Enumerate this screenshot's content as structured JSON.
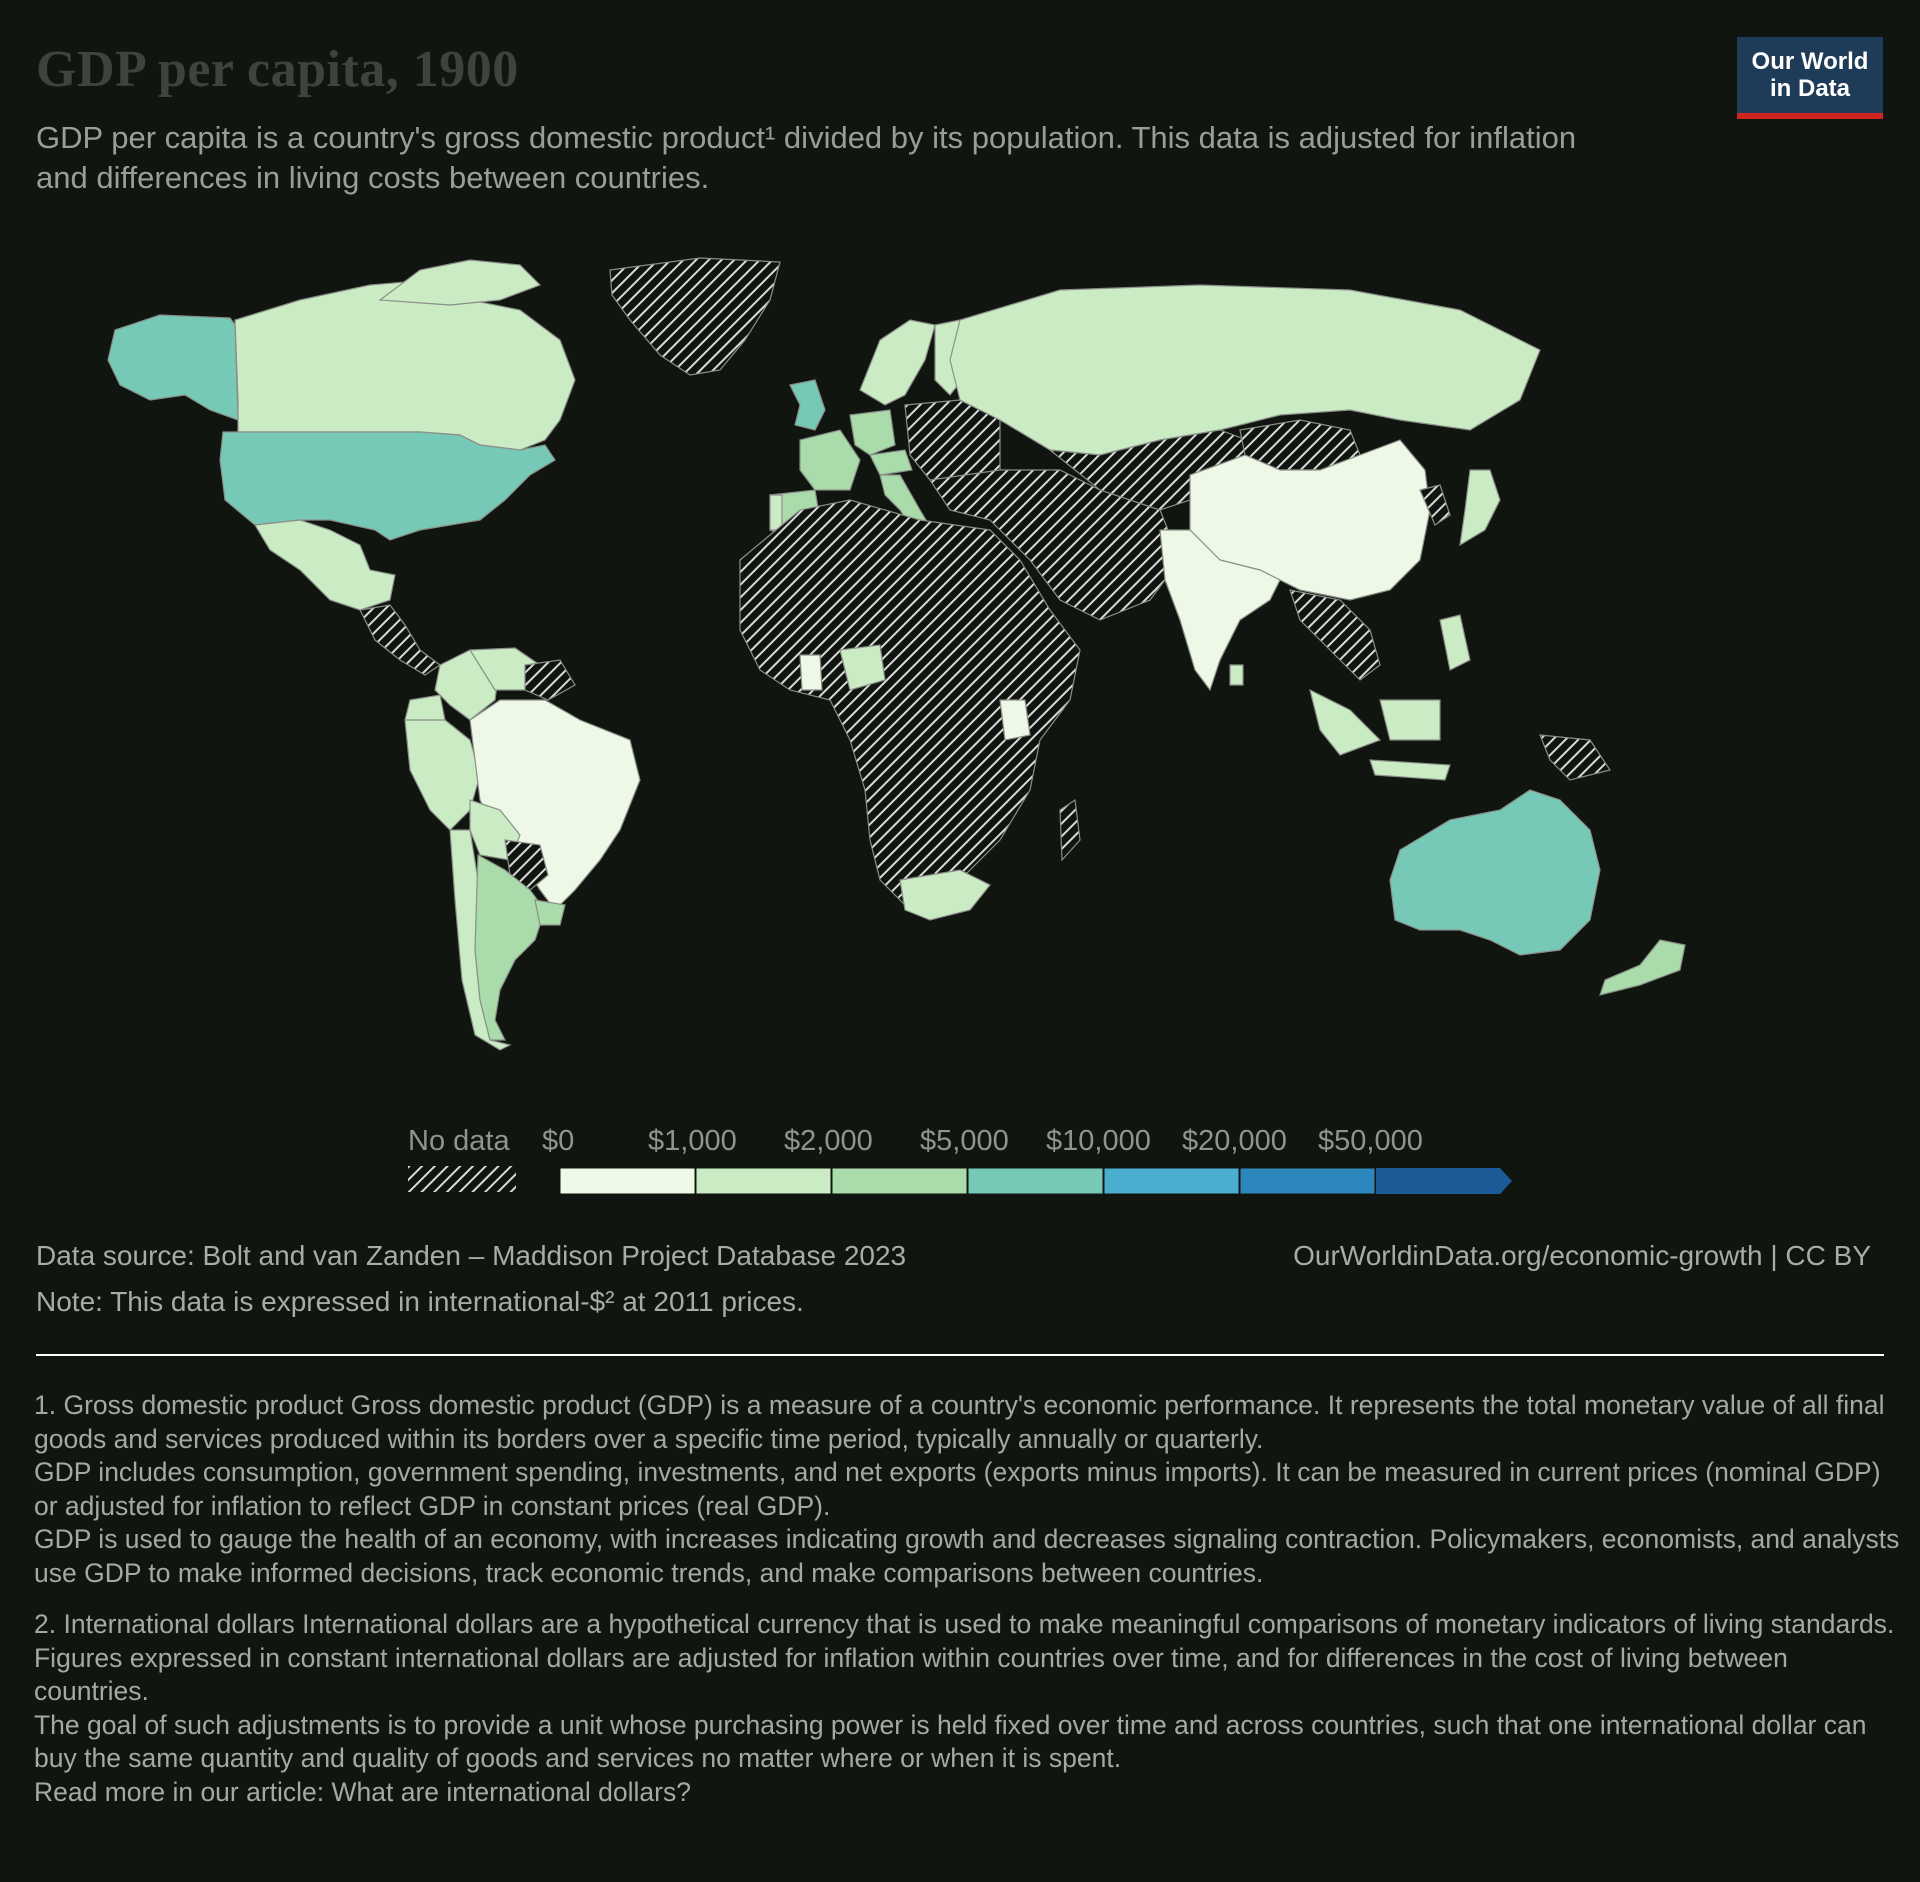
{
  "title": "GDP per capita, 1900",
  "subtitle": "GDP per capita is a country's gross domestic product¹ divided by its population. This data is adjusted for inflation and differences in living costs between countries.",
  "logo": {
    "line1": "Our World",
    "line2": "in Data"
  },
  "colors": {
    "background": "#11150f",
    "nodata_hatch": "#d9d9d9",
    "border": "#888888",
    "bins": [
      "#edf8e7",
      "#cbebc5",
      "#a9dcaa",
      "#76c9b7",
      "#4aaed0",
      "#2d87bd",
      "#1c5b98"
    ]
  },
  "legend": {
    "nodata_label": "No data",
    "tick_labels": [
      "$0",
      "$1,000",
      "$2,000",
      "$5,000",
      "$10,000",
      "$20,000",
      "$50,000"
    ]
  },
  "chart_data": {
    "type": "choropleth",
    "year": 1900,
    "unit": "international-$ at 2011 prices",
    "bins": [
      0,
      1000,
      2000,
      5000,
      10000,
      20000,
      50000
    ],
    "regions_by_bin": {
      "0-1000": [
        "China",
        "India",
        "Brazil",
        "Kenya",
        "Ghana"
      ],
      "1000-2000": [
        "Russia",
        "Canada",
        "Mexico",
        "Colombia",
        "Peru",
        "Chile",
        "Japan",
        "Indonesia",
        "South Africa",
        "Portugal",
        "Scandinavia",
        "Finland",
        "Philippines",
        "Nigeria",
        "Bolivia",
        "Ecuador",
        "Venezuela",
        "Sri Lanka"
      ],
      "2000-5000": [
        "Argentina",
        "Uruguay",
        "Germany",
        "France",
        "Italy",
        "Spain",
        "Austria",
        "Norway",
        "Denmark",
        "Sweden",
        "New Zealand"
      ],
      "5000-10000": [
        "United States",
        "Australia",
        "United Kingdom",
        "Alaska"
      ],
      "no_data": [
        "Greenland",
        "Africa (most)",
        "Middle East",
        "Central Asia",
        "Mongolia",
        "Southeast Asia (mainland)",
        "Papua New Guinea",
        "Paraguay",
        "Central America",
        "Madagascar",
        "Korea",
        "Eastern Europe (part)",
        "Guianas"
      ]
    }
  },
  "source": {
    "data_source": "Data source: Bolt and van Zanden – Maddison Project Database 2023",
    "note": "Note: This data is expressed in international-$² at 2011 prices.",
    "url": "OurWorldinData.org/economic-growth | CC BY"
  },
  "footnotes": {
    "fn1": [
      "1. Gross domestic product Gross domestic product (GDP) is a measure of a country's economic performance. It represents the total monetary value of all final goods and services produced within its borders over a specific time period, typically annually or quarterly.",
      "GDP includes consumption, government spending, investments, and net exports (exports minus imports). It can be measured in current prices (nominal GDP) or adjusted for inflation to reflect GDP in constant prices (real GDP).",
      "GDP is used to gauge the health of an economy, with increases indicating growth and decreases signaling contraction. Policymakers, economists, and analysts use GDP to make informed decisions, track economic trends, and make comparisons between countries."
    ],
    "fn2": [
      "2. International dollars International dollars are a hypothetical currency that is used to make meaningful comparisons of monetary indicators of living standards.",
      "Figures expressed in constant international dollars are adjusted for inflation within countries over time, and for differences in the cost of living between countries.",
      "The goal of such adjustments is to provide a unit whose purchasing power is held fixed over time and across countries, such that one international dollar can buy the same quantity and quality of goods and services no matter where or when it is spent.",
      "Read more in our article: What are international dollars?"
    ]
  }
}
